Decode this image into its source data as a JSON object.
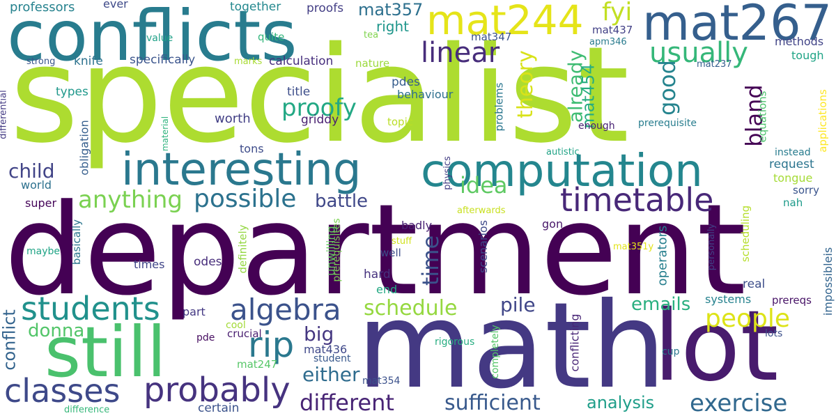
{
  "words": {
    "specialist": {
      "text": "specialist",
      "color": "#addc30"
    },
    "department": {
      "text": "department",
      "color": "#440154"
    },
    "math": {
      "text": "math",
      "color": "#443983"
    },
    "lot": {
      "text": "lot",
      "color": "#481b6d"
    },
    "conflicts": {
      "text": "conflicts",
      "color": "#287c8e"
    },
    "mat244": {
      "text": "mat244",
      "color": "#e5e419"
    },
    "mat267": {
      "text": "mat267",
      "color": "#355f8d"
    },
    "interesting": {
      "text": "interesting",
      "color": "#2a788e"
    },
    "computation": {
      "text": "computation",
      "color": "#24868e"
    },
    "still": {
      "text": "still",
      "color": "#4ac16d"
    },
    "classes": {
      "text": "classes",
      "color": "#3e4989"
    },
    "probably": {
      "text": "probably",
      "color": "#46337f"
    },
    "students": {
      "text": "students",
      "color": "#21918c"
    },
    "algebra": {
      "text": "algebra",
      "color": "#3b528b"
    },
    "rip": {
      "text": "rip",
      "color": "#2a788e"
    },
    "timetable": {
      "text": "timetable",
      "color": "#482878"
    },
    "linear": {
      "text": "linear",
      "color": "#472d7b"
    },
    "usually": {
      "text": "usually",
      "color": "#35b779"
    },
    "fyi": {
      "text": "fyi",
      "color": "#c2df23"
    },
    "proofy": {
      "text": "proofy",
      "color": "#22a884"
    },
    "anything": {
      "text": "anything",
      "color": "#7ad151"
    },
    "possible": {
      "text": "possible",
      "color": "#2c728e"
    },
    "people": {
      "text": "people",
      "color": "#dde318"
    },
    "exercise": {
      "text": "exercise",
      "color": "#31688e"
    },
    "different": {
      "text": "different",
      "color": "#482475"
    },
    "sufficient": {
      "text": "sufficient",
      "color": "#38598c"
    },
    "analysis": {
      "text": "analysis",
      "color": "#1f9e89"
    },
    "schedule": {
      "text": "schedule",
      "color": "#95d840"
    },
    "pile": {
      "text": "pile",
      "color": "#404688"
    },
    "either": {
      "text": "either",
      "color": "#2f6c8e"
    },
    "idea": {
      "text": "idea",
      "color": "#5ec962"
    },
    "battle": {
      "text": "battle",
      "color": "#3f4788"
    },
    "emails": {
      "text": "emails",
      "color": "#29af7f"
    },
    "big": {
      "text": "big",
      "color": "#453781"
    },
    "child": {
      "text": "child",
      "color": "#414487"
    },
    "donna": {
      "text": "donna",
      "color": "#52c569"
    },
    "conflict": {
      "text": "conflict",
      "color": "#33638d"
    },
    "theory": {
      "text": "theory",
      "color": "#d8e219"
    },
    "time": {
      "text": "time",
      "color": "#3b528b"
    },
    "already": {
      "text": "already",
      "color": "#3fbc73"
    },
    "mat454": {
      "text": "mat454",
      "color": "#26ad81"
    },
    "good": {
      "text": "good",
      "color": "#25848e"
    },
    "bland": {
      "text": "bland",
      "color": "#440154"
    },
    "mat357": {
      "text": "mat357",
      "color": "#2d708e"
    },
    "right": {
      "text": "right",
      "color": "#1f968b"
    },
    "professors": {
      "text": "professors",
      "color": "#26828e"
    },
    "ever": {
      "text": "ever",
      "color": "#3e4a89"
    },
    "together": {
      "text": "together",
      "color": "#23888e"
    },
    "proofs": {
      "text": "proofs",
      "color": "#433e85"
    },
    "value": {
      "text": "value",
      "color": "#1fa188"
    },
    "quite": {
      "text": "quite",
      "color": "#31b57b"
    },
    "tea": {
      "text": "tea",
      "color": "#7fd34e"
    },
    "mat347": {
      "text": "mat347",
      "color": "#3b528b"
    },
    "mat437": {
      "text": "mat437",
      "color": "#424086"
    },
    "apm346": {
      "text": "apm346",
      "color": "#297b8e"
    },
    "methods": {
      "text": "methods",
      "color": "#414487"
    },
    "tough": {
      "text": "tough",
      "color": "#20a486"
    },
    "mat237": {
      "text": "mat237",
      "color": "#355f8d"
    },
    "strong": {
      "text": "strong",
      "color": "#39568c"
    },
    "knife": {
      "text": "knife",
      "color": "#2c728e"
    },
    "specifically": {
      "text": "specifically",
      "color": "#3a548c"
    },
    "marks": {
      "text": "marks",
      "color": "#a8db34"
    },
    "calculation": {
      "text": "calculation",
      "color": "#472f7d"
    },
    "nature": {
      "text": "nature",
      "color": "#9bd93c"
    },
    "differential": {
      "text": "differential",
      "color": "#443b84"
    },
    "types": {
      "text": "types",
      "color": "#1f988b"
    },
    "pdes": {
      "text": "pdes",
      "color": "#365d8d"
    },
    "behaviour": {
      "text": "behaviour",
      "color": "#2e6f8e"
    },
    "title": {
      "text": "title",
      "color": "#3d4e8a"
    },
    "worth": {
      "text": "worth",
      "color": "#423f85"
    },
    "griddy": {
      "text": "griddy",
      "color": "#481f70"
    },
    "topic": {
      "text": "topic",
      "color": "#bade28"
    },
    "problems": {
      "text": "problems",
      "color": "#2a768e"
    },
    "enough": {
      "text": "enough",
      "color": "#482173"
    },
    "prerequisite": {
      "text": "prerequisite",
      "color": "#287d8e"
    },
    "applications": {
      "text": "applications",
      "color": "#fde725"
    },
    "equations": {
      "text": "equations",
      "color": "#4cc26c"
    },
    "material": {
      "text": "material",
      "color": "#2db27d"
    },
    "obligation": {
      "text": "obligation",
      "color": "#355e8d"
    },
    "tons": {
      "text": "tons",
      "color": "#3e4c8a"
    },
    "autistic": {
      "text": "autistic",
      "color": "#20a386"
    },
    "instead": {
      "text": "instead",
      "color": "#287c8e"
    },
    "request": {
      "text": "request",
      "color": "#2b748e"
    },
    "tongue": {
      "text": "tongue",
      "color": "#a5db36"
    },
    "world": {
      "text": "world",
      "color": "#2d718e"
    },
    "sorry": {
      "text": "sorry",
      "color": "#3a548c"
    },
    "super": {
      "text": "super",
      "color": "#450559"
    },
    "badly": {
      "text": "badly",
      "color": "#482173"
    },
    "gon": {
      "text": "gon",
      "color": "#481769"
    },
    "afterwards": {
      "text": "afterwards",
      "color": "#c8e020"
    },
    "physics": {
      "text": "physics",
      "color": "#433d84"
    },
    "nah": {
      "text": "nah",
      "color": "#1e9b8a"
    },
    "scheduling": {
      "text": "scheduling",
      "color": "#b5de2b"
    },
    "operators": {
      "text": "operators",
      "color": "#277f8e"
    },
    "prerequisites": {
      "text": "prerequisites",
      "color": "#7ad151"
    },
    "unwilling": {
      "text": "unwilling",
      "color": "#62cb5f"
    },
    "scenarios": {
      "text": "scenarios",
      "color": "#3e4989"
    },
    "stuff": {
      "text": "stuff",
      "color": "#d0e11c"
    },
    "well": {
      "text": "well",
      "color": "#3d4d8a"
    },
    "maybe": {
      "text": "maybe",
      "color": "#20a486"
    },
    "basically": {
      "text": "basically",
      "color": "#2b758e"
    },
    "times": {
      "text": "times",
      "color": "#404588"
    },
    "odes": {
      "text": "odes",
      "color": "#472d7b"
    },
    "definitely": {
      "text": "definitely",
      "color": "#93d741"
    },
    "hard": {
      "text": "hard",
      "color": "#46327e"
    },
    "end": {
      "text": "end",
      "color": "#23a983"
    },
    "mat351y": {
      "text": "mat351y",
      "color": "#e2e418"
    },
    "personally": {
      "text": "personally",
      "color": "#424186"
    },
    "real": {
      "text": "real",
      "color": "#3d4e8a"
    },
    "systems": {
      "text": "systems",
      "color": "#26828e"
    },
    "prereqs": {
      "text": "prereqs",
      "color": "#481467"
    },
    "impossibleis": {
      "text": "impossibleis",
      "color": "#32648e"
    },
    "part": {
      "text": "part",
      "color": "#443983"
    },
    "cool": {
      "text": "cool",
      "color": "#a2da37"
    },
    "crucial": {
      "text": "crucial",
      "color": "#481d6f"
    },
    "pde": {
      "text": "pde",
      "color": "#470e61"
    },
    "mat436": {
      "text": "mat436",
      "color": "#3f4889"
    },
    "student": {
      "text": "student",
      "color": "#38588c"
    },
    "mat247": {
      "text": "mat247",
      "color": "#56c667"
    },
    "rigorous": {
      "text": "rigorous",
      "color": "#27ad81"
    },
    "completely": {
      "text": "completely",
      "color": "#54c568"
    },
    "conflicting": {
      "text": "conflicting",
      "color": "#482576"
    },
    "lots": {
      "text": "lots",
      "color": "#3c4f8a"
    },
    "cup": {
      "text": "cup",
      "color": "#2a788e"
    },
    "mat354": {
      "text": "mat354",
      "color": "#3b518b"
    },
    "difference": {
      "text": "difference",
      "color": "#35b779"
    },
    "certain": {
      "text": "certain",
      "color": "#3b528b"
    }
  }
}
